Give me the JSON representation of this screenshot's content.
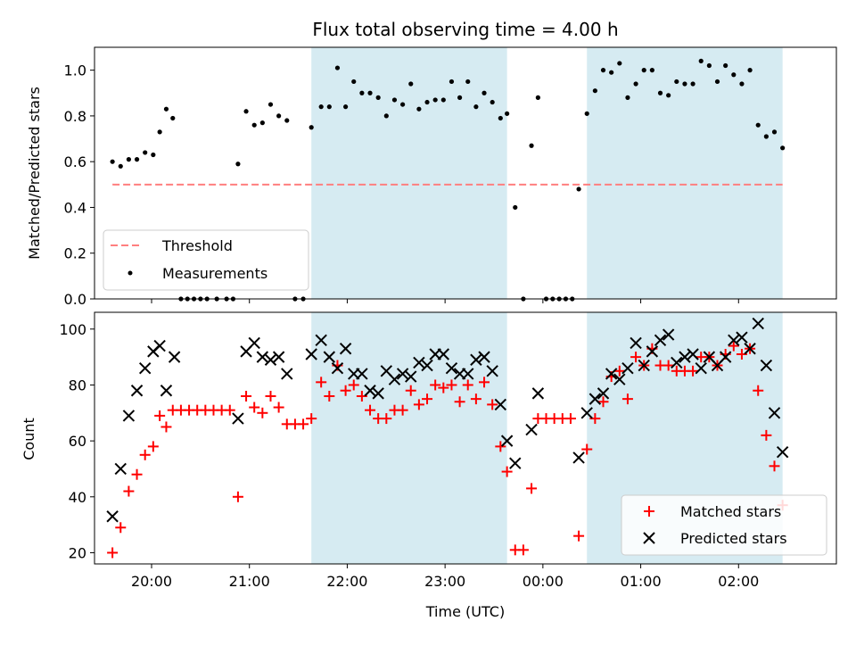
{
  "colors": {
    "shade": "#add8e6",
    "threshold": "#ff7f7f",
    "measurements": "#000000",
    "matched": "#ff0000",
    "predicted": "#000000"
  },
  "chart_data": [
    {
      "type": "scatter",
      "title": "Flux total observing time = 4.00 h",
      "xlabel": "",
      "ylabel": "Matched/Predicted stars",
      "xlim": [
        "19:25",
        "03:00"
      ],
      "ylim": [
        0,
        1.1
      ],
      "yticks": [
        0.0,
        0.2,
        0.4,
        0.6,
        0.8,
        1.0
      ],
      "ytick_labels": [
        "0.0",
        "0.2",
        "0.4",
        "0.6",
        "0.8",
        "1.0"
      ],
      "shaded_intervals": [
        [
          "21:38",
          "23:38"
        ],
        [
          "00:27",
          "02:27"
        ]
      ],
      "threshold": {
        "label": "Threshold",
        "value": 0.5,
        "x": [
          "19:36",
          "02:27"
        ]
      },
      "legend": {
        "placement": "lower left",
        "entries": [
          "Threshold",
          "Measurements"
        ]
      },
      "series": [
        {
          "name": "Measurements",
          "marker": "dot",
          "points": [
            [
              "19:36",
              0.6
            ],
            [
              "19:41",
              0.58
            ],
            [
              "19:46",
              0.61
            ],
            [
              "19:51",
              0.61
            ],
            [
              "19:56",
              0.64
            ],
            [
              "20:01",
              0.63
            ],
            [
              "20:05",
              0.73
            ],
            [
              "20:09",
              0.83
            ],
            [
              "20:13",
              0.79
            ],
            [
              "20:18",
              0.0
            ],
            [
              "20:22",
              0.0
            ],
            [
              "20:26",
              0.0
            ],
            [
              "20:30",
              0.0
            ],
            [
              "20:34",
              0.0
            ],
            [
              "20:40",
              0.0
            ],
            [
              "20:46",
              0.0
            ],
            [
              "20:50",
              0.0
            ],
            [
              "20:53",
              0.59
            ],
            [
              "20:58",
              0.82
            ],
            [
              "21:03",
              0.76
            ],
            [
              "21:08",
              0.77
            ],
            [
              "21:13",
              0.85
            ],
            [
              "21:18",
              0.8
            ],
            [
              "21:23",
              0.78
            ],
            [
              "21:28",
              0.0
            ],
            [
              "21:33",
              0.0
            ],
            [
              "21:38",
              0.75
            ],
            [
              "21:44",
              0.84
            ],
            [
              "21:49",
              0.84
            ],
            [
              "21:54",
              1.01
            ],
            [
              "21:59",
              0.84
            ],
            [
              "22:04",
              0.95
            ],
            [
              "22:09",
              0.9
            ],
            [
              "22:14",
              0.9
            ],
            [
              "22:19",
              0.88
            ],
            [
              "22:24",
              0.8
            ],
            [
              "22:29",
              0.87
            ],
            [
              "22:34",
              0.85
            ],
            [
              "22:39",
              0.94
            ],
            [
              "22:44",
              0.83
            ],
            [
              "22:49",
              0.86
            ],
            [
              "22:54",
              0.87
            ],
            [
              "22:59",
              0.87
            ],
            [
              "23:04",
              0.95
            ],
            [
              "23:09",
              0.88
            ],
            [
              "23:14",
              0.95
            ],
            [
              "23:19",
              0.84
            ],
            [
              "23:24",
              0.9
            ],
            [
              "23:29",
              0.86
            ],
            [
              "23:34",
              0.79
            ],
            [
              "23:38",
              0.81
            ],
            [
              "23:43",
              0.4
            ],
            [
              "23:48",
              0.0
            ],
            [
              "23:53",
              0.67
            ],
            [
              "23:57",
              0.88
            ],
            [
              "00:02",
              0.0
            ],
            [
              "00:06",
              0.0
            ],
            [
              "00:10",
              0.0
            ],
            [
              "00:14",
              0.0
            ],
            [
              "00:18",
              0.0
            ],
            [
              "00:22",
              0.48
            ],
            [
              "00:27",
              0.81
            ],
            [
              "00:32",
              0.91
            ],
            [
              "00:37",
              1.0
            ],
            [
              "00:42",
              0.99
            ],
            [
              "00:47",
              1.03
            ],
            [
              "00:52",
              0.88
            ],
            [
              "00:57",
              0.94
            ],
            [
              "01:02",
              1.0
            ],
            [
              "01:07",
              1.0
            ],
            [
              "01:12",
              0.9
            ],
            [
              "01:17",
              0.89
            ],
            [
              "01:22",
              0.95
            ],
            [
              "01:27",
              0.94
            ],
            [
              "01:32",
              0.94
            ],
            [
              "01:37",
              1.04
            ],
            [
              "01:42",
              1.02
            ],
            [
              "01:47",
              0.95
            ],
            [
              "01:52",
              1.02
            ],
            [
              "01:57",
              0.98
            ],
            [
              "02:02",
              0.94
            ],
            [
              "02:07",
              1.0
            ],
            [
              "02:12",
              0.76
            ],
            [
              "02:17",
              0.71
            ],
            [
              "02:22",
              0.73
            ],
            [
              "02:27",
              0.66
            ]
          ]
        }
      ]
    },
    {
      "type": "scatter",
      "title": "",
      "xlabel": "Time (UTC)",
      "ylabel": "Count",
      "xlim": [
        "19:25",
        "03:00"
      ],
      "ylim": [
        16,
        106
      ],
      "yticks": [
        20,
        40,
        60,
        80,
        100
      ],
      "ytick_labels": [
        "20",
        "40",
        "60",
        "80",
        "100"
      ],
      "xticks": [
        "20:00",
        "21:00",
        "22:00",
        "23:00",
        "00:00",
        "01:00",
        "02:00"
      ],
      "xtick_labels": [
        "20:00",
        "21:00",
        "22:00",
        "23:00",
        "00:00",
        "01:00",
        "02:00"
      ],
      "shaded_intervals": [
        [
          "21:38",
          "23:38"
        ],
        [
          "00:27",
          "02:27"
        ]
      ],
      "legend": {
        "placement": "lower right",
        "entries": [
          "Matched stars",
          "Predicted stars"
        ]
      },
      "series": [
        {
          "name": "Matched stars",
          "marker": "plus",
          "points": [
            [
              "19:36",
              20
            ],
            [
              "19:41",
              29
            ],
            [
              "19:46",
              42
            ],
            [
              "19:51",
              48
            ],
            [
              "19:56",
              55
            ],
            [
              "20:01",
              58
            ],
            [
              "20:05",
              69
            ],
            [
              "20:09",
              65
            ],
            [
              "20:13",
              71
            ],
            [
              "20:18",
              71
            ],
            [
              "20:23",
              71
            ],
            [
              "20:28",
              71
            ],
            [
              "20:33",
              71
            ],
            [
              "20:38",
              71
            ],
            [
              "20:43",
              71
            ],
            [
              "20:48",
              71
            ],
            [
              "20:53",
              40
            ],
            [
              "20:58",
              76
            ],
            [
              "21:03",
              72
            ],
            [
              "21:08",
              70
            ],
            [
              "21:13",
              76
            ],
            [
              "21:18",
              72
            ],
            [
              "21:23",
              66
            ],
            [
              "21:28",
              66
            ],
            [
              "21:33",
              66
            ],
            [
              "21:38",
              68
            ],
            [
              "21:44",
              81
            ],
            [
              "21:49",
              76
            ],
            [
              "21:54",
              87
            ],
            [
              "21:59",
              78
            ],
            [
              "22:04",
              80
            ],
            [
              "22:09",
              76
            ],
            [
              "22:14",
              71
            ],
            [
              "22:19",
              68
            ],
            [
              "22:24",
              68
            ],
            [
              "22:29",
              71
            ],
            [
              "22:34",
              71
            ],
            [
              "22:39",
              78
            ],
            [
              "22:44",
              73
            ],
            [
              "22:49",
              75
            ],
            [
              "22:54",
              80
            ],
            [
              "22:59",
              79
            ],
            [
              "23:04",
              80
            ],
            [
              "23:09",
              74
            ],
            [
              "23:14",
              80
            ],
            [
              "23:19",
              75
            ],
            [
              "23:24",
              81
            ],
            [
              "23:29",
              73
            ],
            [
              "23:34",
              58
            ],
            [
              "23:38",
              49
            ],
            [
              "23:43",
              21
            ],
            [
              "23:48",
              21
            ],
            [
              "23:53",
              43
            ],
            [
              "23:57",
              68
            ],
            [
              "00:02",
              68
            ],
            [
              "00:07",
              68
            ],
            [
              "00:12",
              68
            ],
            [
              "00:17",
              68
            ],
            [
              "00:22",
              26
            ],
            [
              "00:27",
              57
            ],
            [
              "00:32",
              68
            ],
            [
              "00:37",
              74
            ],
            [
              "00:42",
              83
            ],
            [
              "00:47",
              85
            ],
            [
              "00:52",
              75
            ],
            [
              "00:57",
              90
            ],
            [
              "01:02",
              87
            ],
            [
              "01:07",
              93
            ],
            [
              "01:12",
              87
            ],
            [
              "01:17",
              87
            ],
            [
              "01:22",
              85
            ],
            [
              "01:27",
              85
            ],
            [
              "01:32",
              85
            ],
            [
              "01:37",
              90
            ],
            [
              "01:42",
              90
            ],
            [
              "01:47",
              87
            ],
            [
              "01:52",
              91
            ],
            [
              "01:57",
              94
            ],
            [
              "02:02",
              91
            ],
            [
              "02:07",
              93
            ],
            [
              "02:12",
              78
            ],
            [
              "02:17",
              62
            ],
            [
              "02:22",
              51
            ],
            [
              "02:27",
              37
            ]
          ]
        },
        {
          "name": "Predicted stars",
          "marker": "x",
          "points": [
            [
              "19:36",
              33
            ],
            [
              "19:41",
              50
            ],
            [
              "19:46",
              69
            ],
            [
              "19:51",
              78
            ],
            [
              "19:56",
              86
            ],
            [
              "20:01",
              92
            ],
            [
              "20:05",
              94
            ],
            [
              "20:09",
              78
            ],
            [
              "20:14",
              90
            ],
            [
              "20:53",
              68
            ],
            [
              "20:58",
              92
            ],
            [
              "21:03",
              95
            ],
            [
              "21:08",
              90
            ],
            [
              "21:13",
              89
            ],
            [
              "21:18",
              90
            ],
            [
              "21:23",
              84
            ],
            [
              "21:38",
              91
            ],
            [
              "21:44",
              96
            ],
            [
              "21:49",
              90
            ],
            [
              "21:54",
              86
            ],
            [
              "21:59",
              93
            ],
            [
              "22:04",
              84
            ],
            [
              "22:09",
              84
            ],
            [
              "22:14",
              78
            ],
            [
              "22:19",
              77
            ],
            [
              "22:24",
              85
            ],
            [
              "22:29",
              82
            ],
            [
              "22:34",
              84
            ],
            [
              "22:39",
              83
            ],
            [
              "22:44",
              88
            ],
            [
              "22:49",
              87
            ],
            [
              "22:54",
              91
            ],
            [
              "22:59",
              91
            ],
            [
              "23:04",
              86
            ],
            [
              "23:09",
              84
            ],
            [
              "23:14",
              84
            ],
            [
              "23:19",
              89
            ],
            [
              "23:24",
              90
            ],
            [
              "23:29",
              85
            ],
            [
              "23:34",
              73
            ],
            [
              "23:38",
              60
            ],
            [
              "23:43",
              52
            ],
            [
              "23:53",
              64
            ],
            [
              "23:57",
              77
            ],
            [
              "00:22",
              54
            ],
            [
              "00:27",
              70
            ],
            [
              "00:32",
              75
            ],
            [
              "00:37",
              77
            ],
            [
              "00:42",
              84
            ],
            [
              "00:47",
              82
            ],
            [
              "00:52",
              86
            ],
            [
              "00:57",
              95
            ],
            [
              "01:02",
              87
            ],
            [
              "01:07",
              92
            ],
            [
              "01:12",
              96
            ],
            [
              "01:17",
              98
            ],
            [
              "01:22",
              88
            ],
            [
              "01:27",
              90
            ],
            [
              "01:32",
              91
            ],
            [
              "01:37",
              86
            ],
            [
              "01:42",
              90
            ],
            [
              "01:47",
              87
            ],
            [
              "01:52",
              90
            ],
            [
              "01:57",
              96
            ],
            [
              "02:02",
              97
            ],
            [
              "02:07",
              93
            ],
            [
              "02:12",
              102
            ],
            [
              "02:17",
              87
            ],
            [
              "02:22",
              70
            ],
            [
              "02:27",
              56
            ]
          ]
        }
      ]
    }
  ]
}
